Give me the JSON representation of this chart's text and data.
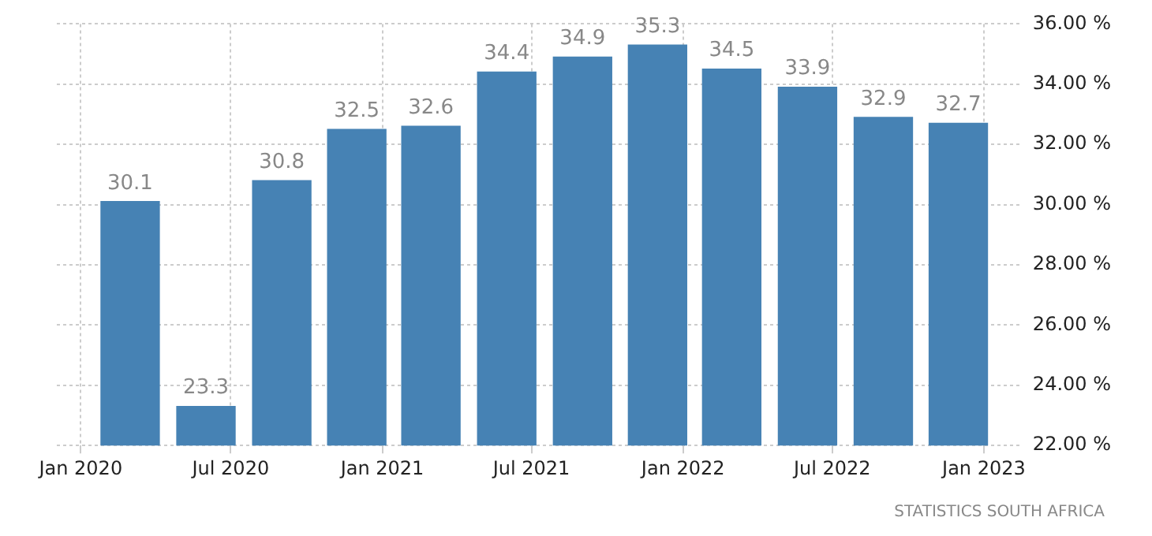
{
  "chart_data": {
    "type": "bar",
    "x": [
      "2020-03",
      "2020-06",
      "2020-09",
      "2020-12",
      "2021-03",
      "2021-06",
      "2021-09",
      "2021-12",
      "2022-03",
      "2022-06",
      "2022-09",
      "2022-12"
    ],
    "values": [
      30.1,
      23.3,
      30.8,
      32.5,
      32.6,
      34.4,
      34.9,
      35.3,
      34.5,
      33.9,
      32.9,
      32.7
    ],
    "color": "#4682b4",
    "xlim": [
      "2019-12-03",
      "2023-02-14"
    ],
    "xticks": [
      {
        "value": "2020-01",
        "label": "Jan 2020"
      },
      {
        "value": "2020-07",
        "label": "Jul 2020"
      },
      {
        "value": "2021-01",
        "label": "Jan 2021"
      },
      {
        "value": "2021-07",
        "label": "Jul 2021"
      },
      {
        "value": "2022-01",
        "label": "Jan 2022"
      },
      {
        "value": "2022-07",
        "label": "Jul 2022"
      },
      {
        "value": "2023-01",
        "label": "Jan 2023"
      }
    ],
    "ylim": [
      22,
      36
    ],
    "yticks": [
      {
        "value": 22,
        "label": "22.00 %"
      },
      {
        "value": 24,
        "label": "24.00 %"
      },
      {
        "value": 26,
        "label": "26.00 %"
      },
      {
        "value": 28,
        "label": "28.00 %"
      },
      {
        "value": 30,
        "label": "30.00 %"
      },
      {
        "value": 32,
        "label": "32.00 %"
      },
      {
        "value": 34,
        "label": "34.00 %"
      },
      {
        "value": 36,
        "label": "36.00 %"
      }
    ],
    "grid": true,
    "data_labels": true,
    "annotations": [
      "STATISTICS SOUTH AFRICA"
    ]
  }
}
